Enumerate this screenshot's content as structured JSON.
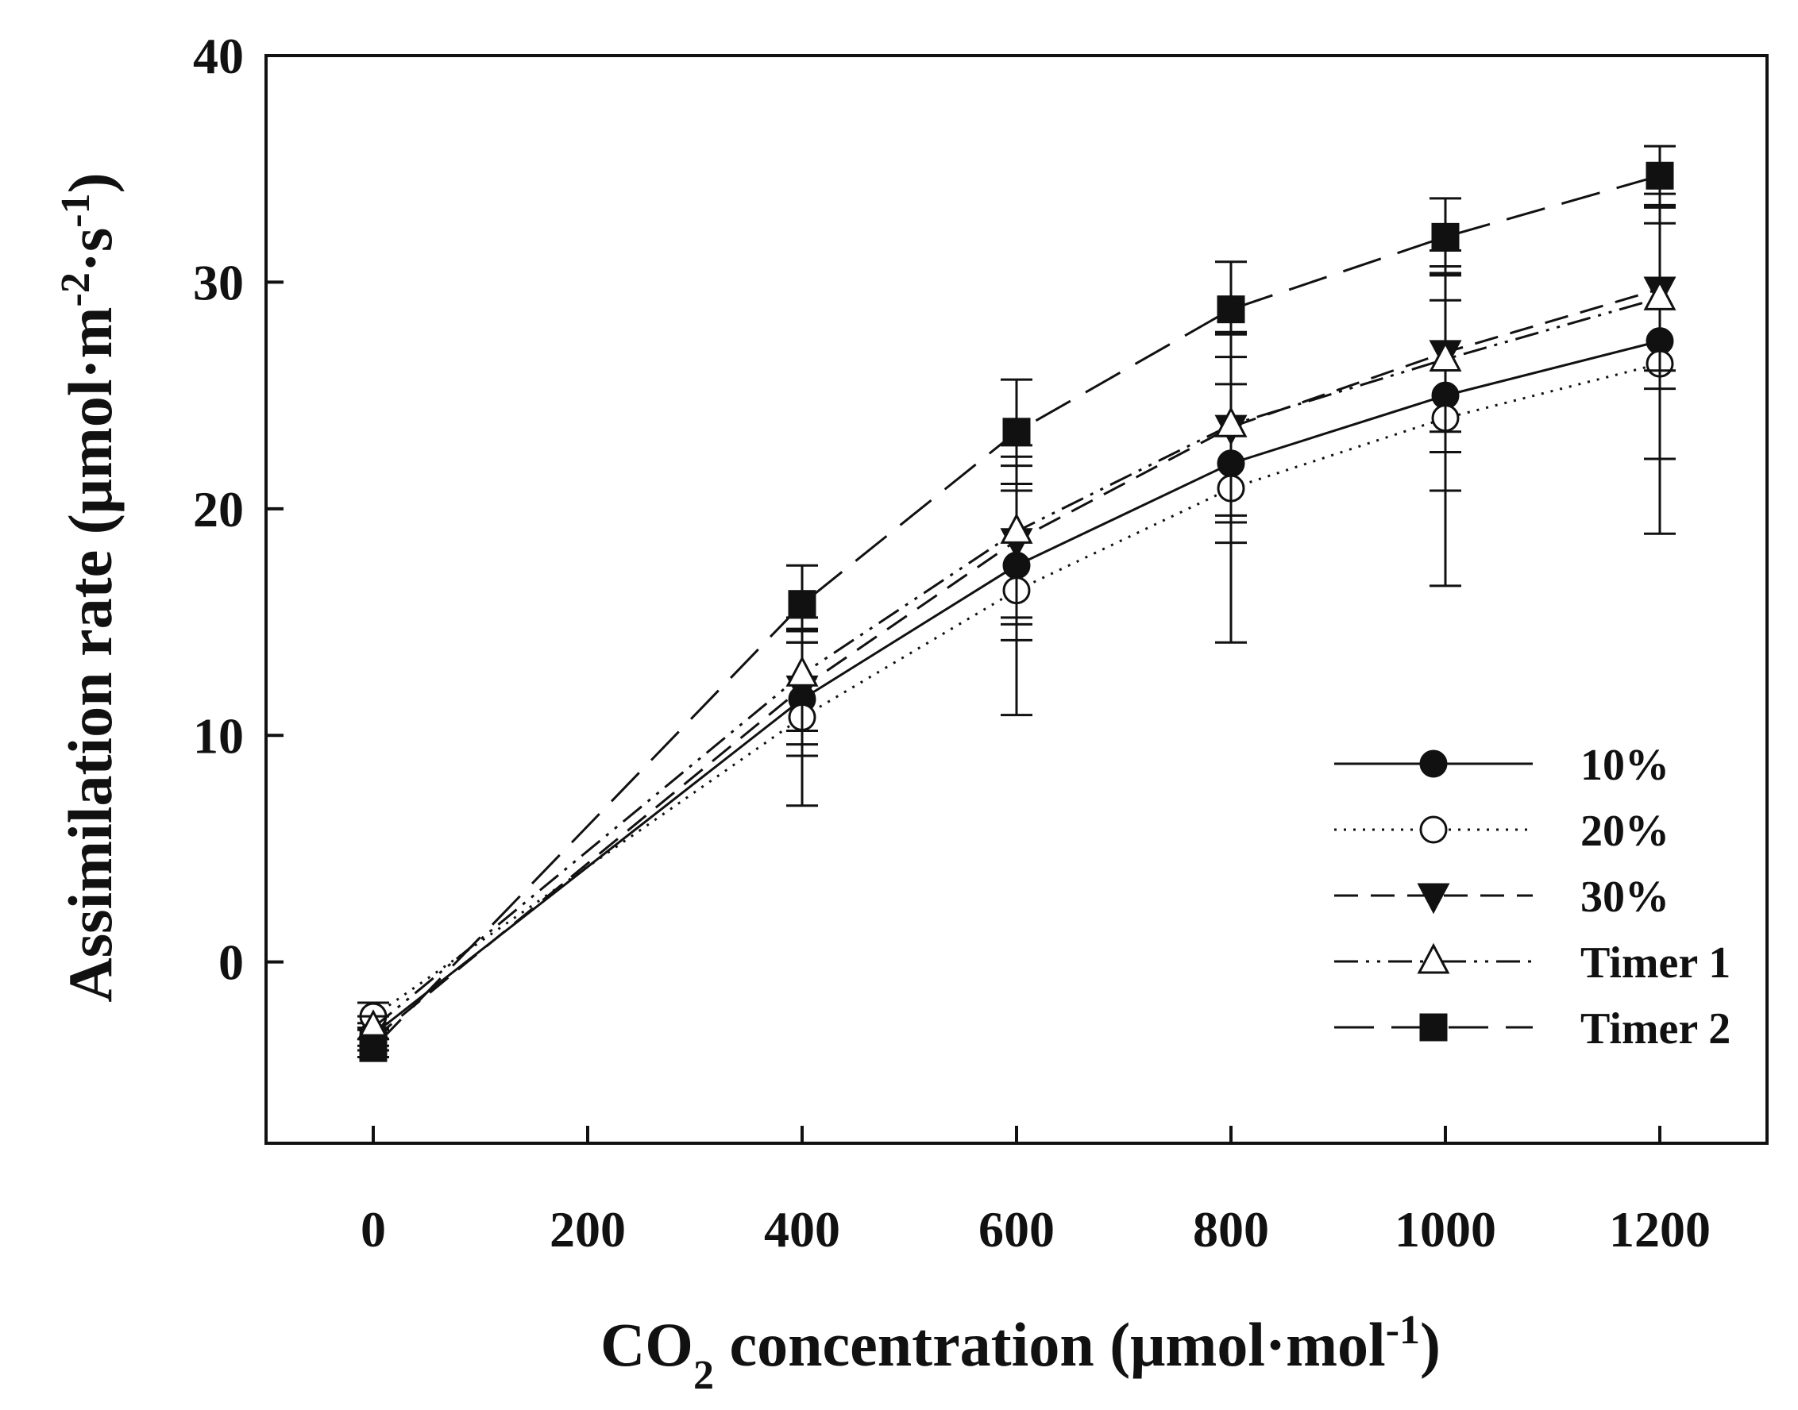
{
  "chart_data": {
    "type": "line",
    "title": "",
    "xlabel": {
      "main": "CO",
      "sub": "2",
      "rest": " concentration (μmol",
      "dot": "·",
      "rest2": "mol",
      "sup": "-1",
      "close": ")"
    },
    "ylabel": {
      "main": "Assimilation rate (μmol",
      "dot1": "·",
      "m": "m",
      "sup1": "-2",
      "dot2": "·",
      "s": "s",
      "sup2": "-1",
      "close": ")"
    },
    "xlim": [
      -100,
      1300
    ],
    "ylim": [
      -8,
      40
    ],
    "xticks": [
      0,
      200,
      400,
      600,
      800,
      1000,
      1200
    ],
    "yticks": [
      0,
      10,
      20,
      30,
      40
    ],
    "grid": false,
    "legend_position": "bottom-right",
    "x": [
      0,
      400,
      600,
      800,
      1000,
      1200
    ],
    "series": [
      {
        "name": "10%",
        "marker": "filled-circle",
        "dash": "solid",
        "values": [
          -3.2,
          11.6,
          17.5,
          22.0,
          25.0,
          27.4
        ],
        "errors": [
          0.5,
          2.5,
          3.3,
          3.5,
          4.2,
          5.2
        ]
      },
      {
        "name": "20%",
        "marker": "open-circle",
        "dash": "dotted",
        "values": [
          -2.4,
          10.8,
          16.4,
          20.9,
          24.0,
          26.4
        ],
        "errors": [
          0.6,
          3.9,
          5.5,
          6.8,
          7.4,
          7.5
        ]
      },
      {
        "name": "30%",
        "marker": "filled-triangle-down",
        "dash": "dashed",
        "values": [
          -3.4,
          12.1,
          18.6,
          23.6,
          26.9,
          29.7
        ],
        "errors": [
          0.5,
          2.5,
          3.7,
          4.2,
          3.5,
          3.6
        ]
      },
      {
        "name": "Timer 1",
        "marker": "open-triangle-up",
        "dash": "dash-dot-dot",
        "values": [
          -2.9,
          12.7,
          19.0,
          23.7,
          26.6,
          29.3
        ],
        "errors": [
          0.5,
          2.5,
          3.8,
          4.0,
          4.1,
          4.0
        ]
      },
      {
        "name": "Timer 2",
        "marker": "filled-square",
        "dash": "long-dash",
        "values": [
          -3.8,
          15.8,
          23.4,
          28.8,
          32.0,
          34.7
        ],
        "errors": [
          0.4,
          1.7,
          2.3,
          2.1,
          1.7,
          1.3
        ]
      }
    ]
  }
}
